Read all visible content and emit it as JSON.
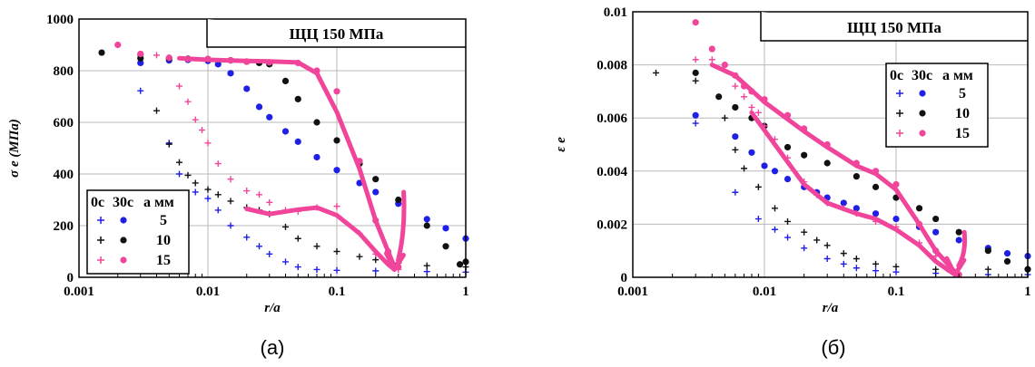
{
  "chart_data": [
    {
      "type": "scatter",
      "panel": "(а)",
      "annotation": "ЩЦ 150 МПа",
      "ylabel": "σ e (МПа)",
      "xlabel": "r/a",
      "xscale": "log",
      "xlim": [
        0.001,
        1
      ],
      "ylim": [
        0,
        1000
      ],
      "xticks": [
        "0.001",
        "0.01",
        "0.1",
        "1"
      ],
      "yticks": [
        "0",
        "200",
        "400",
        "600",
        "800",
        "1000"
      ],
      "grid": true,
      "legend_position": "bottom-left",
      "legend_header": [
        "0с",
        "30с",
        "a мм"
      ],
      "legend_rows": [
        "5",
        "10",
        "15"
      ],
      "series": [
        {
          "name": "0с 5",
          "marker": "plus",
          "color": "#1f1fe6",
          "x": [
            0.003,
            0.005,
            0.006,
            0.008,
            0.01,
            0.012,
            0.015,
            0.02,
            0.025,
            0.03,
            0.04,
            0.05,
            0.07,
            0.1,
            0.2,
            0.5,
            1.0
          ],
          "y": [
            722,
            520,
            400,
            330,
            305,
            260,
            200,
            155,
            120,
            90,
            60,
            40,
            30,
            27,
            25,
            22,
            20
          ]
        },
        {
          "name": "30с 5",
          "marker": "dot",
          "color": "#1f1fe6",
          "x": [
            0.003,
            0.005,
            0.007,
            0.01,
            0.012,
            0.015,
            0.02,
            0.025,
            0.03,
            0.04,
            0.05,
            0.07,
            0.1,
            0.15,
            0.2,
            0.3,
            0.5,
            0.7,
            1.0
          ],
          "y": [
            830,
            840,
            842,
            838,
            825,
            790,
            730,
            660,
            620,
            565,
            525,
            465,
            415,
            365,
            330,
            285,
            225,
            190,
            150
          ]
        },
        {
          "name": "0с 10",
          "marker": "plus",
          "color": "#111111",
          "x": [
            0.003,
            0.004,
            0.005,
            0.006,
            0.007,
            0.008,
            0.01,
            0.012,
            0.015,
            0.02,
            0.025,
            0.03,
            0.04,
            0.05,
            0.07,
            0.1,
            0.15,
            0.2,
            0.3,
            0.5,
            1.0
          ],
          "y": [
            860,
            645,
            515,
            445,
            395,
            365,
            340,
            320,
            295,
            270,
            260,
            245,
            195,
            150,
            120,
            100,
            80,
            68,
            55,
            45,
            40
          ]
        },
        {
          "name": "30с 10",
          "marker": "dot",
          "color": "#111111",
          "x": [
            0.0015,
            0.003,
            0.005,
            0.007,
            0.01,
            0.015,
            0.02,
            0.025,
            0.03,
            0.04,
            0.05,
            0.07,
            0.1,
            0.15,
            0.2,
            0.3,
            0.5,
            0.7,
            0.9,
            1.0
          ],
          "y": [
            870,
            848,
            848,
            846,
            845,
            840,
            835,
            830,
            825,
            760,
            690,
            600,
            530,
            440,
            380,
            300,
            200,
            120,
            50,
            60
          ]
        },
        {
          "name": "0с 15",
          "marker": "plus",
          "color": "#f0459a",
          "x": [
            0.002,
            0.003,
            0.004,
            0.005,
            0.006,
            0.007,
            0.008,
            0.009,
            0.01,
            0.012,
            0.015,
            0.02,
            0.025,
            0.03,
            0.04,
            0.05,
            0.07,
            0.1,
            0.15,
            0.2,
            0.3
          ],
          "y": [
            900,
            865,
            860,
            850,
            740,
            680,
            610,
            570,
            520,
            440,
            380,
            335,
            320,
            290,
            260,
            255,
            270,
            275,
            170,
            90,
            30
          ]
        },
        {
          "name": "30с 15",
          "marker": "dot",
          "color": "#f0459a",
          "x": [
            0.002,
            0.003,
            0.005,
            0.007,
            0.01,
            0.015,
            0.02,
            0.03,
            0.05,
            0.07,
            0.1,
            0.15,
            0.2,
            0.25,
            0.3
          ],
          "y": [
            900,
            865,
            850,
            845,
            845,
            840,
            835,
            832,
            830,
            800,
            720,
            450,
            220,
            100,
            40
          ]
        }
      ]
    },
    {
      "type": "scatter",
      "panel": "(б)",
      "annotation": "ЩЦ 150 МПа",
      "ylabel": "ε e",
      "xlabel": "r/a",
      "xscale": "log",
      "xlim": [
        0.001,
        1
      ],
      "ylim": [
        0,
        0.01
      ],
      "xticks": [
        "0.001",
        "0.01",
        "0.1",
        "1"
      ],
      "yticks": [
        "0",
        "0.002",
        "0.004",
        "0.006",
        "0.008",
        "0.01"
      ],
      "grid": true,
      "legend_position": "top-right",
      "legend_header": [
        "0с",
        "30с",
        "a мм"
      ],
      "legend_rows": [
        "5",
        "10",
        "15"
      ],
      "series": [
        {
          "name": "0с 5",
          "marker": "plus",
          "color": "#1f1fe6",
          "x": [
            0.003,
            0.006,
            0.009,
            0.012,
            0.015,
            0.02,
            0.03,
            0.04,
            0.05,
            0.07,
            0.1,
            0.2,
            0.5,
            1.0
          ],
          "y": [
            0.0058,
            0.0032,
            0.0022,
            0.0018,
            0.0015,
            0.0011,
            0.0007,
            0.0005,
            0.00035,
            0.00025,
            0.0002,
            0.00015,
            0.0001,
            0.0001
          ]
        },
        {
          "name": "30с 5",
          "marker": "dot",
          "color": "#1f1fe6",
          "x": [
            0.003,
            0.006,
            0.008,
            0.01,
            0.012,
            0.015,
            0.02,
            0.025,
            0.03,
            0.04,
            0.05,
            0.07,
            0.1,
            0.15,
            0.2,
            0.3,
            0.5,
            0.7,
            1.0
          ],
          "y": [
            0.0061,
            0.0053,
            0.0047,
            0.0042,
            0.004,
            0.0037,
            0.0034,
            0.0032,
            0.003,
            0.0028,
            0.0026,
            0.0024,
            0.0022,
            0.0019,
            0.0017,
            0.0014,
            0.0011,
            0.0009,
            0.0008
          ]
        },
        {
          "name": "0с 10",
          "marker": "plus",
          "color": "#111111",
          "x": [
            0.0015,
            0.003,
            0.005,
            0.006,
            0.007,
            0.009,
            0.012,
            0.015,
            0.02,
            0.025,
            0.03,
            0.04,
            0.05,
            0.07,
            0.1,
            0.2,
            0.5,
            1.0
          ],
          "y": [
            0.0077,
            0.0074,
            0.006,
            0.0048,
            0.0041,
            0.0034,
            0.0026,
            0.0021,
            0.0017,
            0.0014,
            0.0012,
            0.0009,
            0.0007,
            0.0005,
            0.0004,
            0.0003,
            0.0003,
            0.0003
          ]
        },
        {
          "name": "30с 10",
          "marker": "dot",
          "color": "#111111",
          "x": [
            0.003,
            0.0045,
            0.006,
            0.008,
            0.01,
            0.015,
            0.02,
            0.03,
            0.05,
            0.07,
            0.1,
            0.15,
            0.2,
            0.3,
            0.5,
            0.7,
            1.0
          ],
          "y": [
            0.0077,
            0.0068,
            0.0064,
            0.006,
            0.0057,
            0.0049,
            0.0046,
            0.0043,
            0.0038,
            0.0034,
            0.003,
            0.0026,
            0.0022,
            0.0017,
            0.001,
            0.0006,
            0.0003
          ]
        },
        {
          "name": "0с 15",
          "marker": "plus",
          "color": "#f0459a",
          "x": [
            0.003,
            0.004,
            0.005,
            0.006,
            0.007,
            0.008,
            0.009,
            0.01,
            0.012,
            0.015,
            0.02,
            0.025,
            0.03,
            0.04,
            0.05,
            0.07,
            0.1,
            0.15,
            0.2,
            0.3
          ],
          "y": [
            0.0082,
            0.0082,
            0.008,
            0.0072,
            0.0068,
            0.0064,
            0.0062,
            0.0057,
            0.0052,
            0.0045,
            0.0036,
            0.0031,
            0.0028,
            0.0026,
            0.0024,
            0.0021,
            0.0019,
            0.0013,
            0.0008,
            0.0001
          ]
        },
        {
          "name": "30с 15",
          "marker": "dot",
          "color": "#f0459a",
          "x": [
            0.003,
            0.004,
            0.005,
            0.006,
            0.007,
            0.008,
            0.01,
            0.015,
            0.02,
            0.03,
            0.05,
            0.07,
            0.1,
            0.15,
            0.2,
            0.25,
            0.3
          ],
          "y": [
            0.0096,
            0.0086,
            0.008,
            0.0076,
            0.0072,
            0.007,
            0.0067,
            0.0061,
            0.0056,
            0.005,
            0.0043,
            0.004,
            0.0035,
            0.002,
            0.001,
            0.0003,
            0.0001
          ]
        }
      ]
    }
  ],
  "overlays": [
    {
      "panel": "(а)",
      "color": "#f0459a",
      "path_x": [
        0.006,
        0.01,
        0.02,
        0.03,
        0.05,
        0.07,
        0.1,
        0.15,
        0.2,
        0.25,
        0.28
      ],
      "path_y": [
        848,
        842,
        838,
        836,
        832,
        790,
        640,
        420,
        220,
        100,
        40
      ],
      "path2_x": [
        0.02,
        0.03,
        0.05,
        0.07,
        0.1,
        0.15,
        0.2,
        0.25,
        0.28
      ],
      "path2_y": [
        265,
        245,
        262,
        270,
        240,
        170,
        100,
        50,
        30
      ],
      "arrow_head_x": 0.28,
      "arrow_head_y": 30,
      "arrow_tail_x": 0.33,
      "arrow_tail_y": 330
    },
    {
      "panel": "(б)",
      "color": "#f0459a",
      "path_x": [
        0.004,
        0.006,
        0.01,
        0.02,
        0.03,
        0.05,
        0.07,
        0.1,
        0.15,
        0.2,
        0.28
      ],
      "path_y": [
        0.008,
        0.0076,
        0.0066,
        0.0055,
        0.0049,
        0.0042,
        0.0039,
        0.0033,
        0.002,
        0.001,
        0.0002
      ],
      "path2_x": [
        0.008,
        0.012,
        0.02,
        0.03,
        0.05,
        0.07,
        0.1,
        0.15,
        0.2,
        0.28
      ],
      "path2_y": [
        0.0062,
        0.005,
        0.0035,
        0.0028,
        0.0024,
        0.0022,
        0.0018,
        0.0012,
        0.0006,
        0.0001
      ],
      "arrow_head_x": 0.28,
      "arrow_head_y": 0.0001,
      "arrow_tail_x": 0.33,
      "arrow_tail_y": 0.0017
    }
  ]
}
